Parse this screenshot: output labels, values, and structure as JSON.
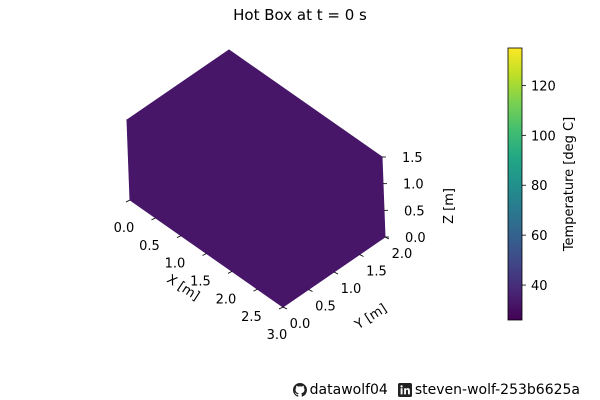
{
  "chart_data": {
    "type": "surface-3d",
    "title": "Hot Box at t = 0 s",
    "xlabel": "X [m]",
    "ylabel": "Y [m]",
    "zlabel": "Z [m]",
    "xlim": [
      0,
      3
    ],
    "ylim": [
      0,
      2
    ],
    "zlim": [
      0,
      1.5
    ],
    "x_ticks": [
      "0.0",
      "0.5",
      "1.0",
      "1.5",
      "2.0",
      "2.5",
      "3.0"
    ],
    "y_ticks": [
      "0.0",
      "0.5",
      "1.0",
      "1.5",
      "2.0"
    ],
    "z_ticks": [
      "0.0",
      "0.5",
      "1.0",
      "1.5"
    ],
    "surface_temperature": 30,
    "surface_color": "#471669",
    "colorbar": {
      "label": "Temperature [deg C]",
      "range": [
        26,
        135
      ],
      "ticks": [
        40,
        60,
        80,
        100,
        120
      ],
      "tick_labels": [
        "40",
        "60",
        "80",
        "100",
        "120"
      ],
      "colormap": "viridis"
    }
  },
  "footer": {
    "github_user": "datawolf04",
    "linkedin_user": "steven-wolf-253b6625a"
  }
}
